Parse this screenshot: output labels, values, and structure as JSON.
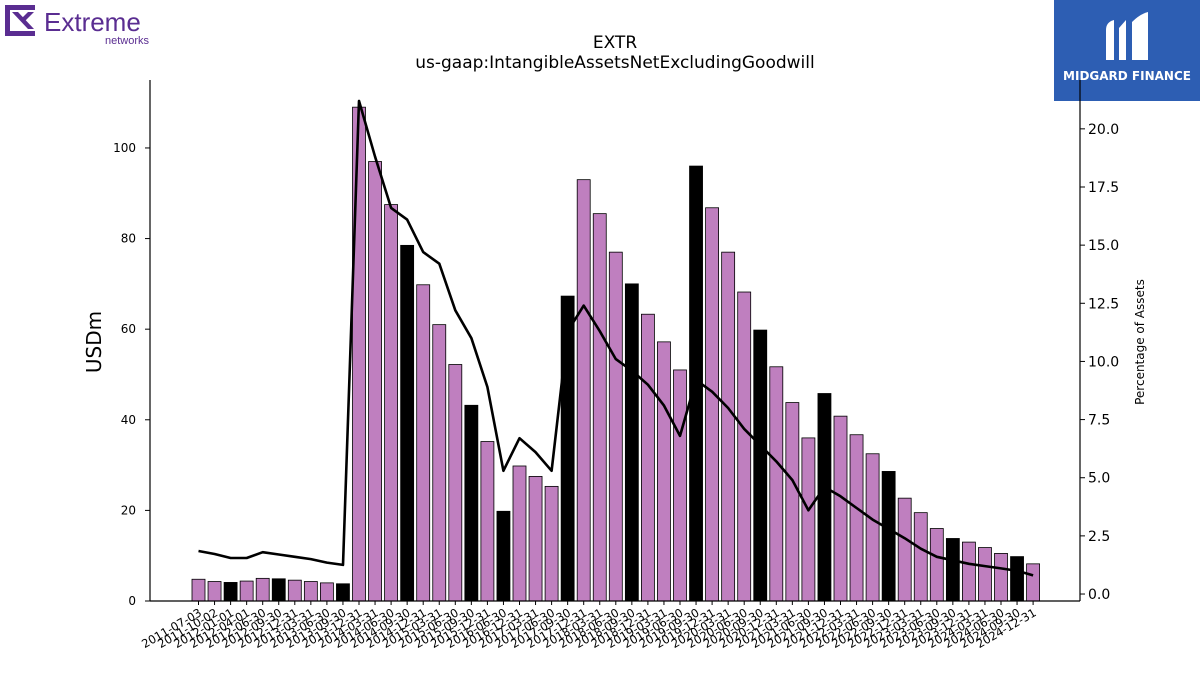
{
  "logos": {
    "left_brand": "Extreme",
    "left_sub": "networks",
    "right_brand": "MIDGARD FINANCE"
  },
  "chart_data": {
    "type": "bar",
    "title": "EXTR",
    "subtitle": "us-gaap:IntangibleAssetsNetExcludingGoodwill",
    "ylabel": "USDm",
    "y2label": "Percentage of Assets",
    "ylim": [
      0,
      115
    ],
    "y2lim": [
      -0.3,
      22.1
    ],
    "yticks": [
      0,
      20,
      40,
      60,
      80,
      100
    ],
    "y2ticks": [
      0.0,
      2.5,
      5.0,
      7.5,
      10.0,
      12.5,
      15.0,
      17.5,
      20.0
    ],
    "categories": [
      "2011-07-03",
      "2011-10-02",
      "2012-01-01",
      "2012-04-01",
      "2012-06-30",
      "2012-09-30",
      "2012-12-31",
      "2013-03-31",
      "2013-06-30",
      "2013-09-30",
      "2013-12-31",
      "2014-03-31",
      "2014-06-30",
      "2014-09-30",
      "2014-12-31",
      "2015-03-31",
      "2015-06-30",
      "2015-09-30",
      "2015-12-31",
      "2016-06-30",
      "2016-12-31",
      "2017-03-31",
      "2017-06-30",
      "2017-09-30",
      "2017-12-31",
      "2018-03-31",
      "2018-06-30",
      "2018-09-30",
      "2018-12-31",
      "2019-03-31",
      "2019-06-30",
      "2019-09-30",
      "2019-12-31",
      "2020-03-31",
      "2020-06-30",
      "2020-09-30",
      "2020-12-31",
      "2021-03-31",
      "2021-06-30",
      "2021-09-30",
      "2021-12-31",
      "2022-03-31",
      "2022-06-30",
      "2022-09-30",
      "2022-12-31",
      "2023-03-31",
      "2023-06-30",
      "2023-09-30",
      "2023-12-31",
      "2024-03-31",
      "2024-06-30",
      "2024-09-30",
      "2024-12-31"
    ],
    "xtick_labels": [
      "2011-07-03",
      "2011-10-02",
      "2012-01-01",
      "2012-04-01",
      "2012-06-30",
      "2012-09-30",
      "2012-12-31",
      "2013-03-31",
      "2013-06-30",
      "2013-09-30",
      "2013-12-31",
      "2014-03-31",
      "2014-06-30",
      "2014-09-30",
      "2014-12-31",
      "2015-03-31",
      "2015-06-30",
      "2015-09-30",
      "2015-12-31",
      "2016-06-30",
      "2016-12-31",
      "2017-03-31",
      "2017-06-30",
      "2017-09-30",
      "2017-12-31",
      "2018-03-31",
      "2018-06-30",
      "2018-09-30",
      "2018-12-31",
      "2019-03-31",
      "2019-06-30",
      "2019-09-30",
      "2019-12-31",
      "2020-03-31",
      "2020-06-30",
      "2020-09-30",
      "2020-12-31",
      "2021-03-31",
      "2021-06-30",
      "2021-09-30",
      "2021-12-31",
      "2022-03-31",
      "2022-06-30",
      "2022-09-30",
      "2022-12-31",
      "2023-03-31",
      "2023-06-30",
      "2023-09-30",
      "2023-12-31",
      "2024-03-31",
      "2024-06-30",
      "2024-09-30",
      "2024-12-31"
    ],
    "values": [
      4.8,
      4.3,
      4.1,
      4.4,
      5.0,
      4.9,
      4.6,
      4.3,
      4.0,
      3.8,
      109.0,
      97.0,
      87.5,
      78.5,
      69.8,
      61.0,
      52.2,
      43.2,
      35.2,
      19.8,
      29.8,
      27.5,
      25.3,
      67.3,
      93.0,
      85.5,
      77.0,
      70.0,
      63.3,
      57.2,
      51.0,
      96.0,
      86.8,
      77.0,
      68.2,
      59.8,
      51.7,
      43.8,
      36.0,
      45.8,
      40.8,
      36.7,
      32.5,
      28.6,
      22.7,
      19.5,
      16.0,
      13.8,
      13.0,
      11.8,
      10.5,
      9.8,
      8.2
    ],
    "annual_flags": [
      0,
      0,
      1,
      0,
      0,
      1,
      0,
      0,
      0,
      1,
      0,
      0,
      0,
      1,
      0,
      0,
      0,
      1,
      0,
      1,
      0,
      0,
      0,
      1,
      0,
      0,
      0,
      1,
      0,
      0,
      0,
      1,
      0,
      0,
      0,
      1,
      0,
      0,
      0,
      1,
      0,
      0,
      0,
      1,
      0,
      0,
      0,
      1,
      0,
      0,
      0,
      1,
      0
    ],
    "series": [
      {
        "values": [
          1.85,
          1.72,
          1.55,
          1.55,
          1.8,
          1.7,
          1.6,
          1.5,
          1.35,
          1.25,
          21.2,
          18.8,
          16.6,
          16.1,
          14.7,
          14.2,
          12.2,
          11.0,
          8.9,
          5.3,
          6.7,
          6.1,
          5.3,
          11.3,
          12.4,
          11.3,
          10.1,
          9.6,
          9.0,
          8.1,
          6.8,
          9.2,
          8.7,
          8.0,
          7.1,
          6.4,
          5.7,
          4.9,
          3.6,
          4.6,
          4.2,
          3.7,
          3.2,
          2.8,
          2.4,
          1.95,
          1.6,
          1.45,
          1.3,
          1.2,
          1.1,
          1.0,
          0.8
        ]
      }
    ],
    "colors": {
      "bar": "#bf7fbf",
      "bar_annual": "#000000",
      "line": "#000000"
    }
  }
}
